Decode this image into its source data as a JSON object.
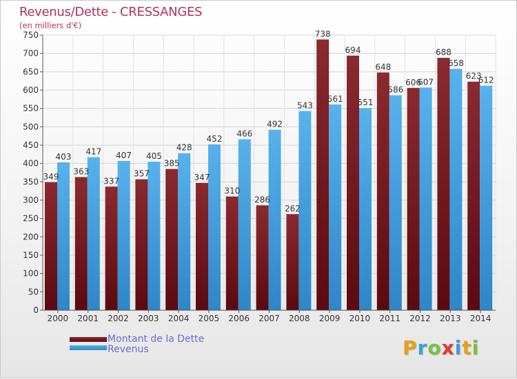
{
  "title": "Revenus/Dette - CRESSANGES",
  "subtitle": "(en milliers d'€)",
  "legend": {
    "debt_label": "Montant de la Dette",
    "revenue_label": "Revenus"
  },
  "logo": {
    "letters": [
      "P",
      "r",
      "o",
      "x",
      "i",
      "t",
      "i"
    ],
    "colors": [
      "#e8a019",
      "#3aa0d8",
      "#7cc043",
      "#e23a2e",
      "#3aa0d8",
      "#e8a019",
      "#7cc043"
    ]
  },
  "colors": {
    "debt": "#7a1f24",
    "debt_dark": "#5a0a10",
    "revenue": "#4aa8e6",
    "revenue_dark": "#2f86c8",
    "title": "#b5305a"
  },
  "chart_data": {
    "type": "bar",
    "categories": [
      "2000",
      "2001",
      "2002",
      "2003",
      "2004",
      "2005",
      "2006",
      "2007",
      "2008",
      "2009",
      "2010",
      "2011",
      "2012",
      "2013",
      "2014"
    ],
    "series": [
      {
        "name": "Montant de la Dette",
        "values": [
          349,
          363,
          337,
          357,
          385,
          347,
          310,
          286,
          262,
          738,
          694,
          648,
          606,
          688,
          623
        ]
      },
      {
        "name": "Revenus",
        "values": [
          403,
          417,
          407,
          405,
          428,
          452,
          466,
          492,
          543,
          561,
          551,
          586,
          607,
          658,
          612
        ]
      }
    ],
    "ylim": [
      0,
      750
    ],
    "yticks": [
      0,
      50,
      100,
      150,
      200,
      250,
      300,
      350,
      400,
      450,
      500,
      550,
      600,
      650,
      700,
      750
    ],
    "grid": true,
    "legend_position": "bottom-left"
  }
}
